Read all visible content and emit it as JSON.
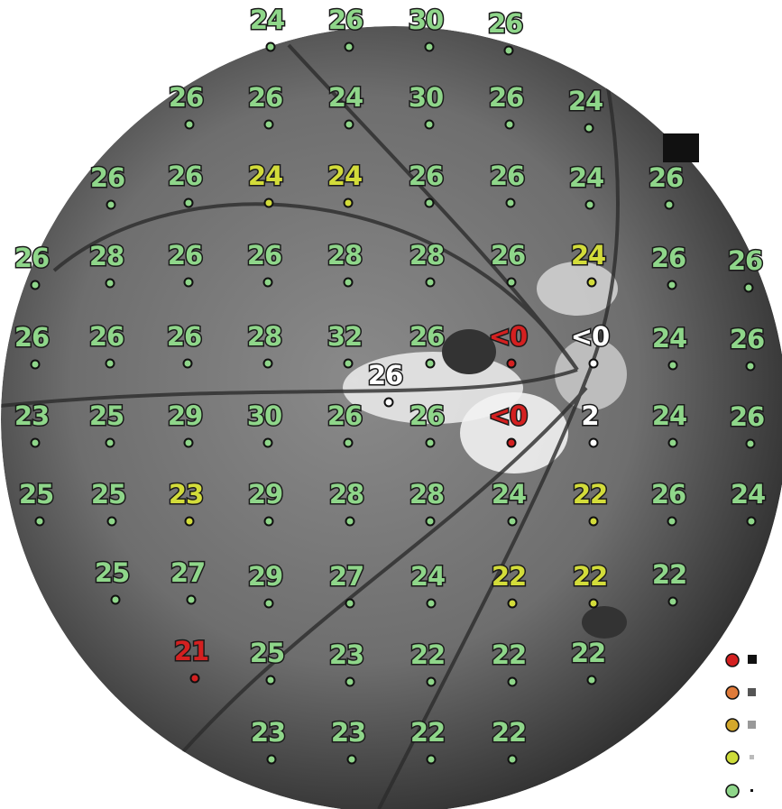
{
  "points": [
    {
      "label": "24",
      "color": "#8fd68a"
    },
    {
      "label": "26",
      "color": "#8fd68a"
    },
    {
      "label": "30",
      "color": "#8fd68a"
    },
    {
      "label": "26",
      "color": "#8fd68a"
    },
    {
      "label": "26",
      "color": "#8fd68a"
    },
    {
      "label": "26",
      "color": "#8fd68a"
    },
    {
      "label": "24",
      "color": "#8fd68a"
    },
    {
      "label": "30",
      "color": "#8fd68a"
    },
    {
      "label": "26",
      "color": "#8fd68a"
    },
    {
      "label": "24",
      "color": "#8fd68a"
    },
    {
      "label": "26",
      "color": "#8fd68a"
    },
    {
      "label": "26",
      "color": "#8fd68a"
    },
    {
      "label": "24",
      "color": "#d3dc3a"
    },
    {
      "label": "24",
      "color": "#d3dc3a"
    },
    {
      "label": "26",
      "color": "#8fd68a"
    },
    {
      "label": "26",
      "color": "#8fd68a"
    },
    {
      "label": "24",
      "color": "#8fd68a"
    },
    {
      "label": "26",
      "color": "#8fd68a"
    },
    {
      "label": "26",
      "color": "#8fd68a"
    },
    {
      "label": "28",
      "color": "#8fd68a"
    },
    {
      "label": "26",
      "color": "#8fd68a"
    },
    {
      "label": "26",
      "color": "#8fd68a"
    },
    {
      "label": "28",
      "color": "#8fd68a"
    },
    {
      "label": "28",
      "color": "#8fd68a"
    },
    {
      "label": "26",
      "color": "#8fd68a"
    },
    {
      "label": "24",
      "color": "#d3dc3a"
    },
    {
      "label": "26",
      "color": "#8fd68a"
    },
    {
      "label": "26",
      "color": "#8fd68a"
    },
    {
      "label": "26",
      "color": "#8fd68a"
    },
    {
      "label": "26",
      "color": "#8fd68a"
    },
    {
      "label": "26",
      "color": "#8fd68a"
    },
    {
      "label": "28",
      "color": "#8fd68a"
    },
    {
      "label": "32",
      "color": "#8fd68a"
    },
    {
      "label": "26",
      "color": "#8fd68a"
    },
    {
      "label": "<0",
      "color": "#d42020"
    },
    {
      "label": "<0",
      "color": "#ffffff"
    },
    {
      "label": "24",
      "color": "#8fd68a"
    },
    {
      "label": "26",
      "color": "#8fd68a"
    },
    {
      "label": "26",
      "color": "#ffffff"
    },
    {
      "label": "23",
      "color": "#8fd68a"
    },
    {
      "label": "25",
      "color": "#8fd68a"
    },
    {
      "label": "29",
      "color": "#8fd68a"
    },
    {
      "label": "30",
      "color": "#8fd68a"
    },
    {
      "label": "26",
      "color": "#8fd68a"
    },
    {
      "label": "26",
      "color": "#8fd68a"
    },
    {
      "label": "<0",
      "color": "#d42020"
    },
    {
      "label": "2",
      "color": "#ffffff"
    },
    {
      "label": "24",
      "color": "#8fd68a"
    },
    {
      "label": "26",
      "color": "#8fd68a"
    },
    {
      "label": "25",
      "color": "#8fd68a"
    },
    {
      "label": "25",
      "color": "#8fd68a"
    },
    {
      "label": "23",
      "color": "#d3dc3a"
    },
    {
      "label": "29",
      "color": "#8fd68a"
    },
    {
      "label": "28",
      "color": "#8fd68a"
    },
    {
      "label": "28",
      "color": "#8fd68a"
    },
    {
      "label": "24",
      "color": "#8fd68a"
    },
    {
      "label": "22",
      "color": "#d3dc3a"
    },
    {
      "label": "26",
      "color": "#8fd68a"
    },
    {
      "label": "24",
      "color": "#8fd68a"
    },
    {
      "label": "25",
      "color": "#8fd68a"
    },
    {
      "label": "27",
      "color": "#8fd68a"
    },
    {
      "label": "29",
      "color": "#8fd68a"
    },
    {
      "label": "27",
      "color": "#8fd68a"
    },
    {
      "label": "24",
      "color": "#8fd68a"
    },
    {
      "label": "22",
      "color": "#d3dc3a"
    },
    {
      "label": "22",
      "color": "#d3dc3a"
    },
    {
      "label": "22",
      "color": "#8fd68a"
    },
    {
      "label": "21",
      "color": "#d42020"
    },
    {
      "label": "25",
      "color": "#8fd68a"
    },
    {
      "label": "23",
      "color": "#8fd68a"
    },
    {
      "label": "22",
      "color": "#8fd68a"
    },
    {
      "label": "22",
      "color": "#8fd68a"
    },
    {
      "label": "22",
      "color": "#8fd68a"
    },
    {
      "label": "23",
      "color": "#8fd68a"
    },
    {
      "label": "23",
      "color": "#8fd68a"
    },
    {
      "label": "22",
      "color": "#8fd68a"
    },
    {
      "label": "22",
      "color": "#8fd68a"
    }
  ]
}
